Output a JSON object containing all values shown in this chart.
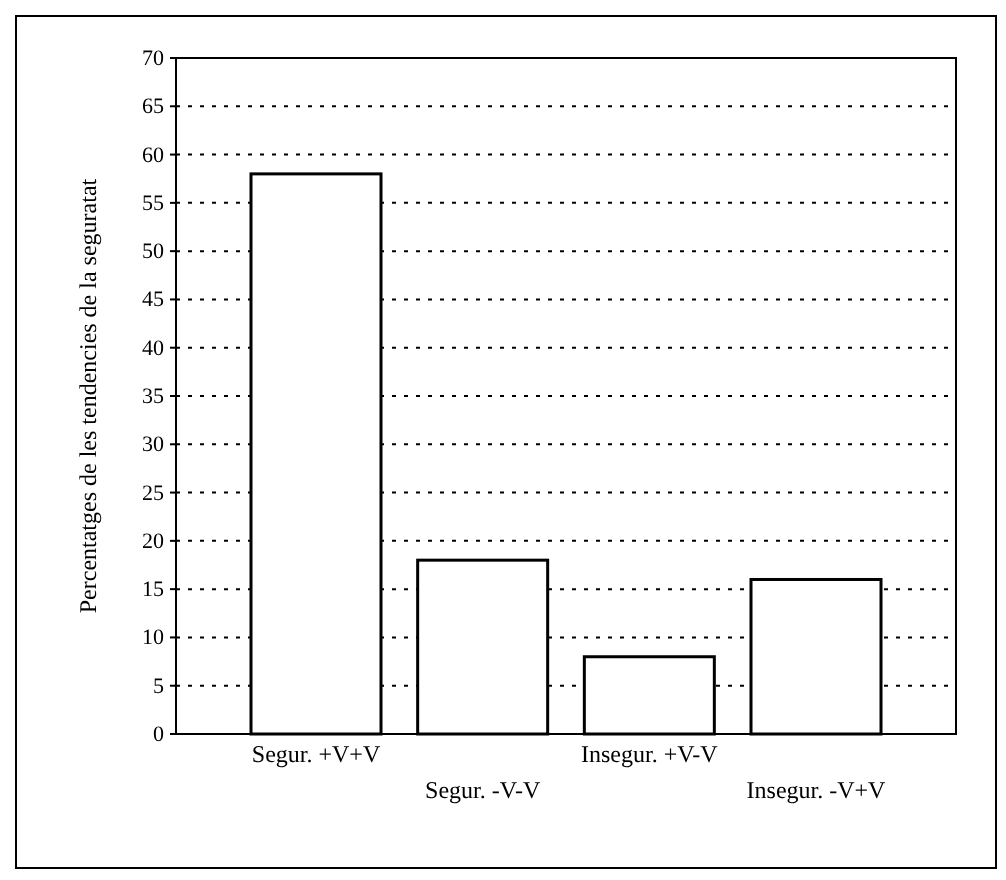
{
  "chart_data": {
    "type": "bar",
    "ylabel": "Percentatges de les tendencies de la seguratat",
    "categories": [
      "Segur. +V+V",
      "Segur. -V-V",
      "Insegur. +V-V",
      "Insegur. -V+V"
    ],
    "values": [
      58,
      18,
      8,
      16
    ],
    "color": "#ffffff",
    "ylim": [
      0,
      70
    ],
    "yticks": [
      0,
      5,
      10,
      15,
      20,
      25,
      30,
      35,
      40,
      45,
      50,
      55,
      60,
      65,
      70
    ],
    "grid": "y"
  }
}
